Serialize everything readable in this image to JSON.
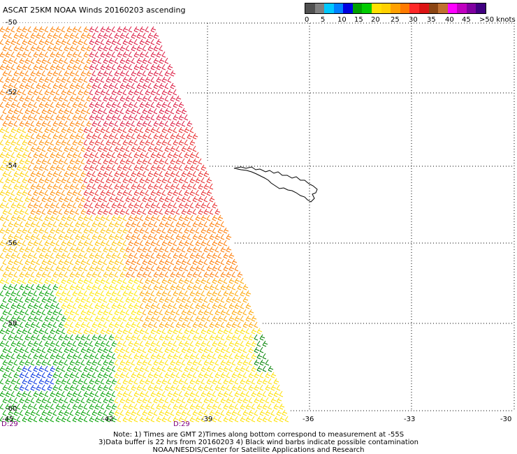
{
  "title": "ASCAT 25KM NOAA Winds 20160203 ascending",
  "colorbar": {
    "segments": [
      {
        "color": "#505050"
      },
      {
        "color": "#808080"
      },
      {
        "color": "#00c8ff"
      },
      {
        "color": "#0080ff"
      },
      {
        "color": "#0000e0"
      },
      {
        "color": "#00a000"
      },
      {
        "color": "#00cc00"
      },
      {
        "color": "#ffe000"
      },
      {
        "color": "#ffd000"
      },
      {
        "color": "#ffa000"
      },
      {
        "color": "#ff7a00"
      },
      {
        "color": "#ff2828"
      },
      {
        "color": "#dc1414"
      },
      {
        "color": "#8b4513"
      },
      {
        "color": "#c07030"
      },
      {
        "color": "#ff00ff"
      },
      {
        "color": "#c000c0"
      },
      {
        "color": "#8000a0"
      },
      {
        "color": "#400080"
      }
    ],
    "ticks": [
      "0",
      "5",
      "10",
      "15",
      "20",
      "25",
      "30",
      "35",
      "40",
      "45",
      ">50 knots"
    ]
  },
  "map": {
    "lat_labels": [
      "-50",
      "-52",
      "-54",
      "-56",
      "-58",
      "-60"
    ],
    "lon_labels": [
      "-45",
      "-42",
      "-39",
      "-36",
      "-33",
      "-30"
    ],
    "time_labels": [
      "D:29",
      "D:29"
    ]
  },
  "notes": [
    "Note: 1) Times are GMT 2)Times along bottom correspond to measurement at -55S",
    "3)Data buffer is 22 hrs from 20160203 4) Black wind barbs indicate possible contamination",
    "NOAA/NESDIS/Center for Satellite Applications and Research"
  ]
}
